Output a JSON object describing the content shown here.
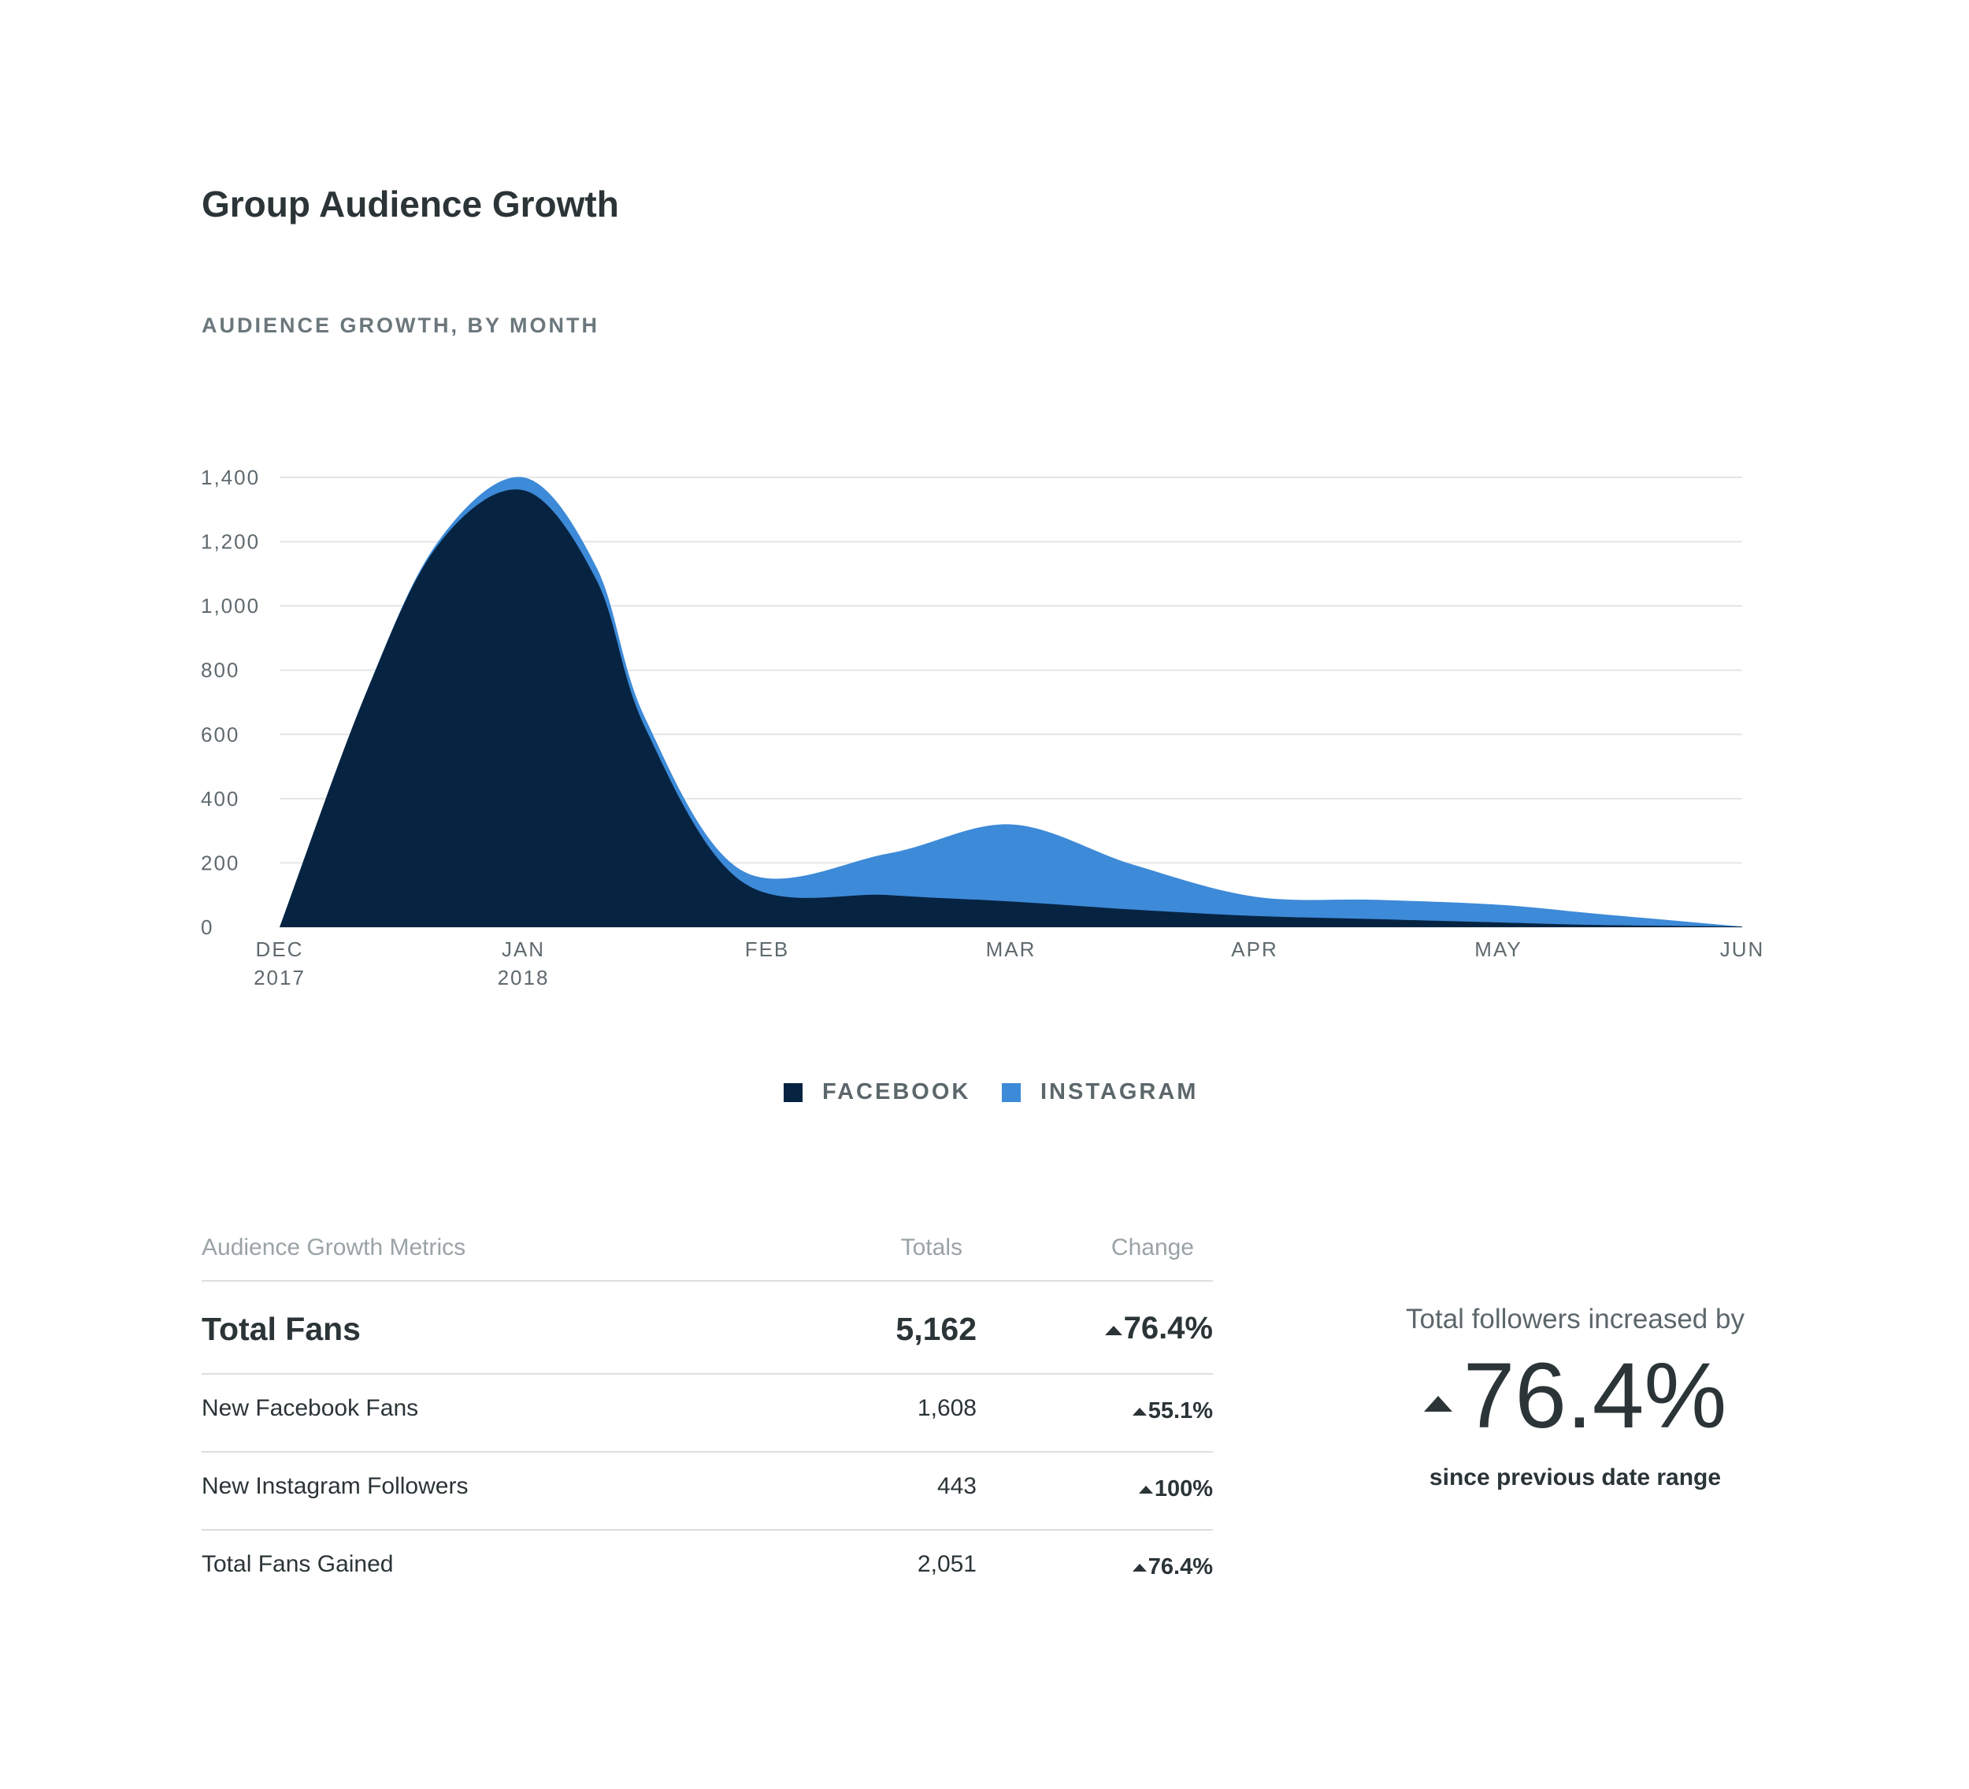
{
  "header": {
    "title": "Group Audience Growth",
    "subtitle": "AUDIENCE GROWTH, BY MONTH"
  },
  "chart_data": {
    "type": "area",
    "stacked": true,
    "x": [
      "DEC 2017",
      "JAN 2018",
      "FEB",
      "MAR",
      "APR",
      "MAY",
      "JUN"
    ],
    "x_tick_labels": [
      [
        "DEC",
        "2017"
      ],
      [
        "JAN",
        "2018"
      ],
      [
        "FEB"
      ],
      [
        "MAR"
      ],
      [
        "APR"
      ],
      [
        "MAY"
      ],
      [
        "JUN"
      ]
    ],
    "yticks": [
      "0",
      "200",
      "400",
      "600",
      "800",
      "1,000",
      "1,200",
      "1,400"
    ],
    "ylim": [
      0,
      1400
    ],
    "grid": true,
    "legend_position": "bottom-center",
    "series": [
      {
        "name": "FACEBOOK",
        "color": "#062442",
        "points": [
          [
            0,
            0
          ],
          [
            0.35,
            720
          ],
          [
            0.65,
            1190
          ],
          [
            1.0,
            1360
          ],
          [
            1.3,
            1080
          ],
          [
            1.5,
            620
          ],
          [
            1.9,
            140
          ],
          [
            2.5,
            100
          ],
          [
            3.0,
            80
          ],
          [
            3.5,
            55
          ],
          [
            4.0,
            35
          ],
          [
            4.5,
            25
          ],
          [
            5.0,
            15
          ],
          [
            5.4,
            7
          ],
          [
            6.0,
            2
          ]
        ]
      },
      {
        "name": "INSTAGRAM",
        "color": "#3d8ad8",
        "points": [
          [
            0,
            0
          ],
          [
            0.35,
            0
          ],
          [
            0.65,
            10
          ],
          [
            1.0,
            40
          ],
          [
            1.3,
            40
          ],
          [
            1.5,
            30
          ],
          [
            1.9,
            35
          ],
          [
            2.5,
            130
          ],
          [
            3.0,
            240
          ],
          [
            3.5,
            140
          ],
          [
            4.0,
            60
          ],
          [
            4.5,
            60
          ],
          [
            5.0,
            55
          ],
          [
            5.4,
            35
          ],
          [
            6.0,
            0
          ]
        ]
      }
    ]
  },
  "metrics": {
    "headers": {
      "label": "Audience Growth Metrics",
      "totals": "Totals",
      "change": "Change"
    },
    "rows": [
      {
        "label": "Total Fans",
        "total": "5,162",
        "change": "76.4%"
      },
      {
        "label": "New Facebook Fans",
        "total": "1,608",
        "change": "55.1%"
      },
      {
        "label": "New Instagram Followers",
        "total": "443",
        "change": "100%"
      },
      {
        "label": "Total Fans Gained",
        "total": "2,051",
        "change": "76.4%"
      }
    ]
  },
  "summary": {
    "lead": "Total followers increased by",
    "value": "76.4%",
    "tail": "since previous date range"
  },
  "icons": {
    "increase": "triangle-up-icon"
  }
}
